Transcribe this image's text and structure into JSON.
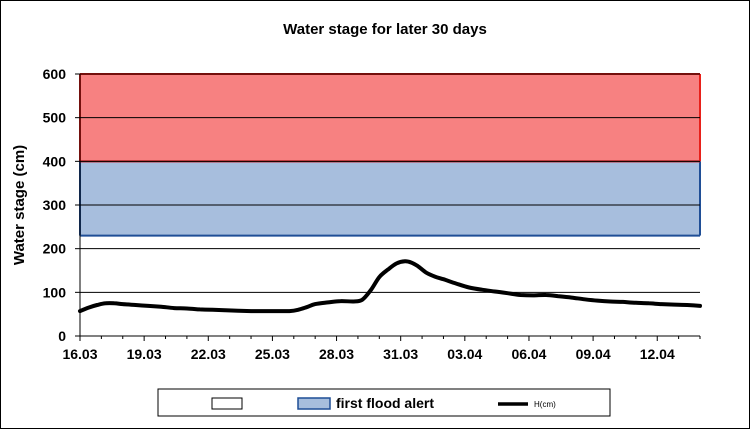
{
  "chart_data": {
    "type": "line",
    "title": "Water stage for later 30 days",
    "xlabel": "",
    "ylabel": "Water stage (cm)",
    "ylim": [
      0,
      600
    ],
    "yticks": [
      0,
      100,
      200,
      300,
      400,
      500,
      600
    ],
    "x_tick_labels": [
      "16.03",
      "19.03",
      "22.03",
      "25.03",
      "28.03",
      "31.03",
      "03.04",
      "06.04",
      "09.04",
      "12.04"
    ],
    "x_tick_days": [
      0,
      3,
      6,
      9,
      12,
      15,
      18,
      21,
      24,
      27
    ],
    "x_range_days": [
      0,
      29
    ],
    "bands": [
      {
        "name": "",
        "from": 0,
        "to": 230,
        "color": "#ffffff",
        "border": "#000000"
      },
      {
        "name": "first flood alert",
        "from": 230,
        "to": 400,
        "color": "#a7bedd",
        "border": "#1f4e96"
      },
      {
        "name": "",
        "from": 400,
        "to": 600,
        "color": "#f78181",
        "border": "#e8201a"
      }
    ],
    "series": [
      {
        "name": "H(cm)",
        "color": "#000000",
        "x": [
          0,
          0.4,
          0.8,
          1.2,
          1.6,
          2.0,
          2.6,
          3.2,
          3.8,
          4.4,
          5.0,
          5.6,
          6.2,
          6.8,
          7.4,
          8.0,
          8.6,
          9.2,
          9.8,
          10.2,
          10.6,
          11.0,
          11.6,
          12.2,
          12.8,
          13.2,
          13.6,
          14.0,
          14.4,
          14.8,
          15.2,
          15.5,
          15.8,
          16.2,
          16.6,
          17.0,
          17.6,
          18.2,
          18.8,
          19.4,
          20.0,
          20.6,
          21.2,
          21.8,
          22.4,
          23.0,
          23.6,
          24.2,
          24.8,
          25.4,
          26.0,
          26.6,
          27.2,
          27.8,
          28.4,
          29.0
        ],
        "y": [
          57,
          65,
          71,
          75,
          75,
          73,
          71,
          69,
          67,
          64,
          63,
          61,
          60,
          59,
          58,
          57,
          57,
          57,
          57,
          60,
          66,
          73,
          77,
          80,
          79,
          83,
          105,
          135,
          152,
          166,
          171,
          168,
          160,
          145,
          136,
          130,
          120,
          111,
          106,
          102,
          98,
          94,
          93,
          94,
          91,
          88,
          84,
          81,
          79,
          78,
          76,
          75,
          73,
          72,
          71,
          69
        ]
      }
    ],
    "legend": {
      "placement": "bottom",
      "entries": [
        {
          "label": "",
          "kind": "band",
          "color": "#ffffff"
        },
        {
          "label": "first flood alert",
          "kind": "band",
          "color": "#a7bedd"
        },
        {
          "label": "H(cm)",
          "kind": "line",
          "color": "#000000"
        }
      ]
    },
    "grid": true
  }
}
